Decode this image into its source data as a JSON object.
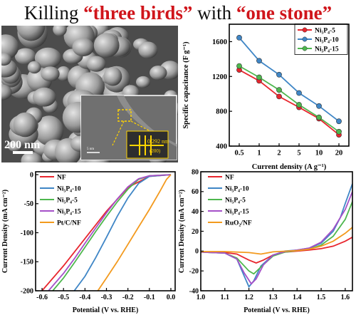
{
  "header": {
    "part1": "Killing ",
    "part2": "“three birds”",
    "part3": " with ",
    "part4": "“one stone”"
  },
  "micrograph": {
    "scalebar_main": "200 nm",
    "scalebar_inset": "5 nm",
    "lattice_value": "0.292 nm",
    "lattice_plane": "(200)"
  },
  "chart_data": [
    {
      "type": "line",
      "xlabel": "Current density (A g⁻¹)",
      "ylabel": "Specific capacitance (F g⁻¹)",
      "categories": [
        "0.5",
        "1",
        "2",
        "5",
        "10",
        "20"
      ],
      "ylim": [
        400,
        1800
      ],
      "yticks": [
        400,
        800,
        1200,
        1600
      ],
      "legend": "top-right",
      "series": [
        {
          "name": "Ni₅P₄-5",
          "color": "#e8262e",
          "values": [
            1275,
            1150,
            970,
            845,
            715,
            530
          ]
        },
        {
          "name": "Ni₅P₄-10",
          "color": "#3f86c6",
          "values": [
            1645,
            1380,
            1220,
            1010,
            860,
            685
          ]
        },
        {
          "name": "Ni₅P₄-15",
          "color": "#4eb74e",
          "values": [
            1320,
            1190,
            1045,
            875,
            730,
            565
          ]
        }
      ]
    },
    {
      "type": "line",
      "xlabel": "Potential (V vs. RHE)",
      "ylabel": "Current Density (mA cm⁻²)",
      "xlim": [
        -0.63,
        0.02
      ],
      "ylim": [
        -200,
        5
      ],
      "xticks": [
        -0.6,
        -0.5,
        -0.4,
        -0.3,
        -0.2,
        -0.1,
        0.0
      ],
      "xtick_labels": [
        "-0.6",
        "-0.5",
        "-0.4",
        "-0.3",
        "-0.2",
        "-0.1",
        "0.0"
      ],
      "yticks": [
        -200,
        -150,
        -100,
        -50,
        0
      ],
      "legend": "top-left",
      "series": [
        {
          "name": "NF",
          "color": "#e8262e",
          "x": [
            -0.6,
            -0.5,
            -0.4,
            -0.3,
            -0.2,
            -0.1,
            0.0
          ],
          "y": [
            -200,
            -157,
            -110,
            -63,
            -22,
            -3,
            0
          ]
        },
        {
          "name": "Ni₅P₄-10",
          "color": "#3f86c6",
          "x": [
            -0.45,
            -0.4,
            -0.35,
            -0.3,
            -0.25,
            -0.2,
            -0.15,
            -0.1,
            0.0
          ],
          "y": [
            -200,
            -175,
            -143,
            -108,
            -72,
            -40,
            -15,
            -3,
            0
          ]
        },
        {
          "name": "Ni₅P₄-5",
          "color": "#4eb74e",
          "x": [
            -0.55,
            -0.5,
            -0.45,
            -0.4,
            -0.35,
            -0.3,
            -0.25,
            -0.2,
            -0.15,
            -0.1,
            0.0
          ],
          "y": [
            -200,
            -178,
            -152,
            -125,
            -98,
            -72,
            -47,
            -25,
            -8,
            -2,
            0
          ]
        },
        {
          "name": "Ni₅P₄-15",
          "color": "#a550c8",
          "x": [
            -0.57,
            -0.5,
            -0.45,
            -0.4,
            -0.35,
            -0.3,
            -0.25,
            -0.2,
            -0.15,
            -0.1,
            0.0
          ],
          "y": [
            -200,
            -170,
            -145,
            -118,
            -92,
            -66,
            -42,
            -21,
            -7,
            -2,
            0
          ]
        },
        {
          "name": "Pt/C/NF",
          "color": "#f39a1e",
          "x": [
            -0.34,
            -0.3,
            -0.25,
            -0.2,
            -0.15,
            -0.1,
            -0.05,
            -0.02,
            0.0
          ],
          "y": [
            -200,
            -178,
            -150,
            -120,
            -90,
            -60,
            -28,
            -8,
            0
          ]
        }
      ]
    },
    {
      "type": "line",
      "xlabel": "Potential (V vs. RHE)",
      "ylabel": "Current Density (mA cm⁻²)",
      "xlim": [
        1.0,
        1.63
      ],
      "ylim": [
        -40,
        80
      ],
      "xticks": [
        1.0,
        1.1,
        1.2,
        1.3,
        1.4,
        1.5,
        1.6
      ],
      "xtick_labels": [
        "1.0",
        "1.1",
        "1.2",
        "1.3",
        "1.4",
        "1.5",
        "1.6"
      ],
      "yticks": [
        -40,
        -20,
        0,
        20,
        40,
        60,
        80
      ],
      "legend": "top-left",
      "series": [
        {
          "name": "NF",
          "color": "#e8262e",
          "x": [
            1.0,
            1.1,
            1.15,
            1.2,
            1.23,
            1.26,
            1.3,
            1.35,
            1.4,
            1.45,
            1.5,
            1.55,
            1.6,
            1.63
          ],
          "y": [
            -1,
            -1.5,
            -3,
            -9,
            -12,
            -9,
            -4,
            -1,
            0,
            1,
            2.5,
            5,
            10,
            14
          ]
        },
        {
          "name": "Ni₅P₄-10",
          "color": "#3f86c6",
          "x": [
            1.0,
            1.1,
            1.15,
            1.18,
            1.2,
            1.22,
            1.25,
            1.3,
            1.35,
            1.4,
            1.45,
            1.5,
            1.55,
            1.58,
            1.6,
            1.63
          ],
          "y": [
            -1,
            -2,
            -8,
            -25,
            -36,
            -30,
            -15,
            -4,
            0,
            1,
            3,
            8,
            20,
            34,
            48,
            68
          ]
        },
        {
          "name": "Ni₅P₄-5",
          "color": "#4eb74e",
          "x": [
            1.0,
            1.1,
            1.15,
            1.2,
            1.22,
            1.25,
            1.3,
            1.35,
            1.4,
            1.45,
            1.5,
            1.55,
            1.6,
            1.63
          ],
          "y": [
            -1,
            -2,
            -7,
            -20,
            -23,
            -16,
            -5,
            -1,
            0.5,
            2,
            6,
            15,
            32,
            50
          ]
        },
        {
          "name": "Ni₅P₄-15",
          "color": "#a550c8",
          "x": [
            1.0,
            1.1,
            1.15,
            1.18,
            1.21,
            1.23,
            1.26,
            1.3,
            1.35,
            1.4,
            1.45,
            1.5,
            1.55,
            1.6,
            1.63
          ],
          "y": [
            -1,
            -2,
            -8,
            -22,
            -33,
            -28,
            -14,
            -4,
            -0.5,
            1,
            3,
            9,
            22,
            42,
            60
          ]
        },
        {
          "name": "RuO₂/NF",
          "color": "#f39a1e",
          "x": [
            1.0,
            1.1,
            1.2,
            1.25,
            1.3,
            1.4,
            1.45,
            1.5,
            1.55,
            1.6,
            1.63
          ],
          "y": [
            -0.5,
            -0.5,
            -1.5,
            -3,
            -0.8,
            0.5,
            2,
            5,
            10,
            18,
            24
          ]
        }
      ]
    }
  ]
}
